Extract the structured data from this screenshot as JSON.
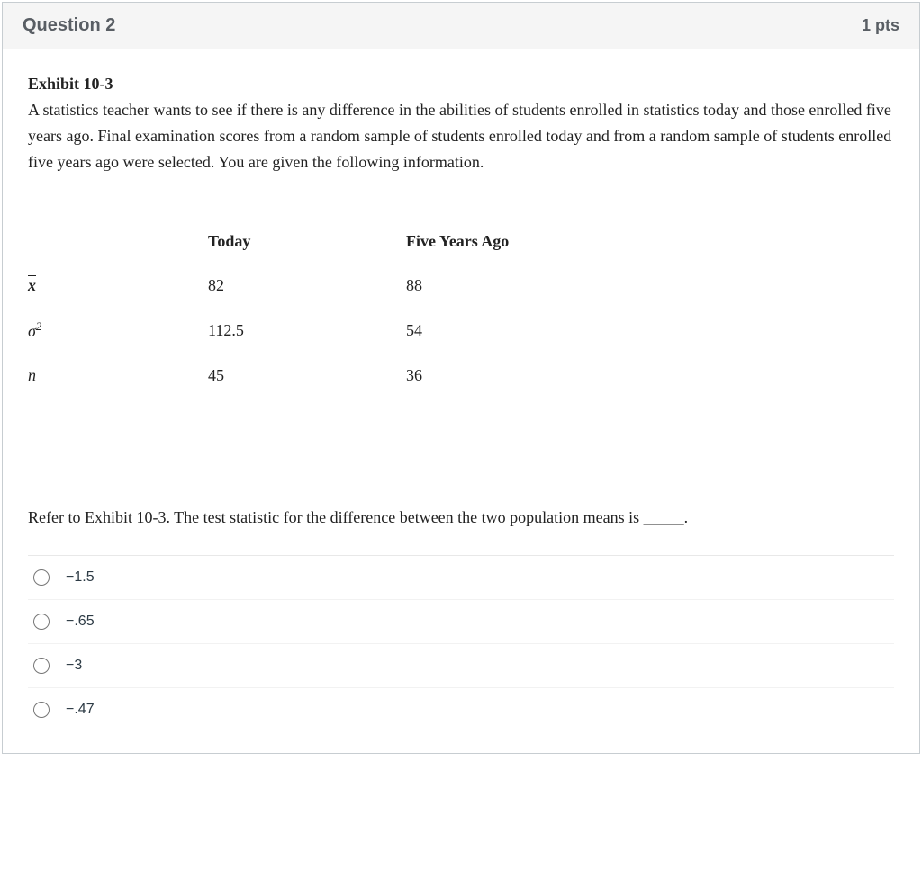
{
  "header": {
    "title": "Question 2",
    "points": "1 pts"
  },
  "exhibit": {
    "title": "Exhibit 10-3",
    "description": "A statistics teacher wants to see if there is any difference in the abilities of students enrolled in statistics today and those enrolled five years ago. Final examination scores from a random sample of students enrolled today and from a random sample of students enrolled five years ago were selected. You are given the following information."
  },
  "table": {
    "columns": [
      "",
      "Today",
      "Five Years Ago"
    ],
    "rows": [
      {
        "symbol": "xbar",
        "today": "82",
        "five_years_ago": "88"
      },
      {
        "symbol": "sigma_sq",
        "today": "112.5",
        "five_years_ago": "54"
      },
      {
        "symbol": "n",
        "today": "45",
        "five_years_ago": "36"
      }
    ]
  },
  "prompt": "Refer to Exhibit 10-3. The test statistic for the difference between the two population means is _____.",
  "answers": [
    {
      "label": "−1.5"
    },
    {
      "label": "−.65"
    },
    {
      "label": "−3"
    },
    {
      "label": "−.47"
    }
  ]
}
